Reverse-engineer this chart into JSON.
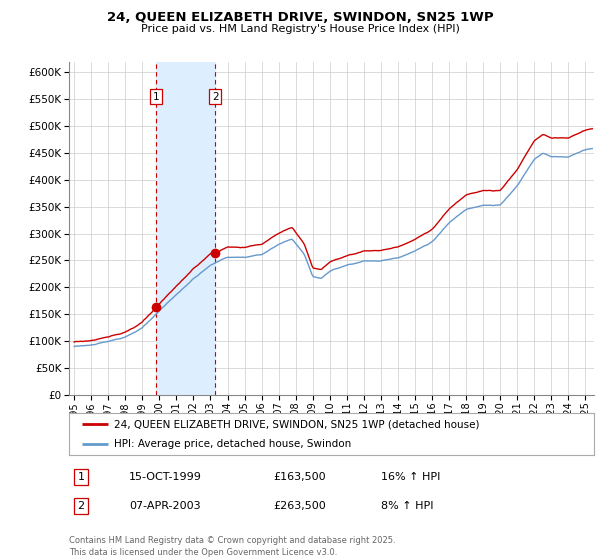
{
  "title_line1": "24, QUEEN ELIZABETH DRIVE, SWINDON, SN25 1WP",
  "title_line2": "Price paid vs. HM Land Registry's House Price Index (HPI)",
  "ylim": [
    0,
    620000
  ],
  "yticks": [
    0,
    50000,
    100000,
    150000,
    200000,
    250000,
    300000,
    350000,
    400000,
    450000,
    500000,
    550000,
    600000
  ],
  "xlim_start": 1994.7,
  "xlim_end": 2025.5,
  "sale1_date": 1999.79,
  "sale1_price": 163500,
  "sale2_date": 2003.27,
  "sale2_price": 263500,
  "sale_color": "#cc0000",
  "hpi_color": "#6699cc",
  "vline_color": "#cc0000",
  "shade_color": "#ddeeff",
  "legend_label1": "24, QUEEN ELIZABETH DRIVE, SWINDON, SN25 1WP (detached house)",
  "legend_label2": "HPI: Average price, detached house, Swindon",
  "table_row1": [
    "1",
    "15-OCT-1999",
    "£163,500",
    "16% ↑ HPI"
  ],
  "table_row2": [
    "2",
    "07-APR-2003",
    "£263,500",
    "8% ↑ HPI"
  ],
  "footnote": "Contains HM Land Registry data © Crown copyright and database right 2025.\nThis data is licensed under the Open Government Licence v3.0.",
  "background_color": "#ffffff",
  "grid_color": "#cccccc",
  "fig_width": 6.0,
  "fig_height": 5.6,
  "fig_dpi": 100
}
